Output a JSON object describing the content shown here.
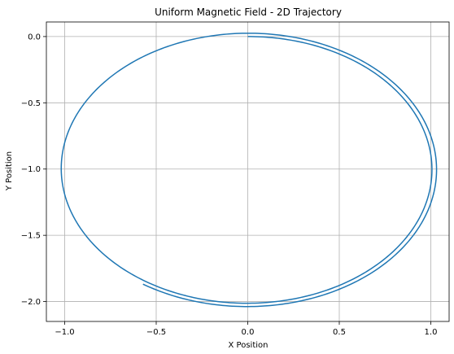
{
  "chart_data": {
    "type": "line",
    "title": "Uniform Magnetic Field - 2D Trajectory",
    "xlabel": "X Position",
    "ylabel": "Y Position",
    "xlim": [
      -1.1,
      1.1
    ],
    "ylim": [
      -2.15,
      0.11
    ],
    "xticks": [
      -1.0,
      -0.5,
      0.0,
      0.5,
      1.0
    ],
    "xtick_labels": [
      "−1.0",
      "−0.5",
      "0.0",
      "0.5",
      "1.0"
    ],
    "yticks": [
      0.0,
      -0.5,
      -1.0,
      -1.5,
      -2.0
    ],
    "ytick_labels": [
      "0.0",
      "−0.5",
      "−1.0",
      "−1.5",
      "−2.0"
    ],
    "grid": true,
    "colors": {
      "series": "#1f77b4",
      "grid": "#b0b0b0",
      "axes": "#000000"
    },
    "series": [
      {
        "trajectory": {
          "description_free": true,
          "center": [
            0.0,
            -1.0
          ],
          "radius_start": 1.0,
          "radius_end": 1.04,
          "start_point": [
            0.0,
            0.0
          ],
          "end_point": [
            -0.58,
            -1.88
          ],
          "turns": 1.2,
          "direction": "clockwise"
        },
        "x": [
          0.0,
          0.5,
          0.87,
          1.0,
          0.88,
          0.51,
          0.0,
          -0.51,
          -0.88,
          -1.02,
          -0.89,
          -0.52,
          0.0,
          0.52,
          0.9,
          1.04,
          0.9,
          0.52,
          0.0,
          -0.58
        ],
        "y": [
          0.0,
          -0.13,
          -0.5,
          -1.0,
          -1.5,
          -1.87,
          -2.01,
          -1.88,
          -1.51,
          -1.0,
          -0.49,
          -0.1,
          0.03,
          -0.11,
          -0.48,
          -1.0,
          -1.52,
          -1.91,
          -2.04,
          -1.88
        ]
      }
    ]
  }
}
